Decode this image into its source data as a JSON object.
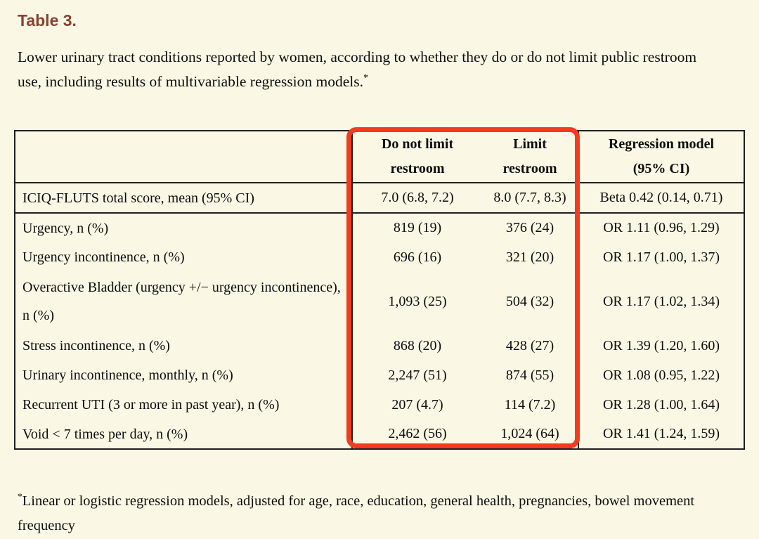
{
  "title": "Table 3.",
  "caption": {
    "text": "Lower urinary tract conditions reported by women, according to whether they do or do not limit public restroom use, including results of multivariable regression models.",
    "footnote_marker": "*"
  },
  "table": {
    "header": {
      "label": "",
      "no_limit_line1": "Do not limit",
      "no_limit_line2": "restroom",
      "limit_line1": "Limit",
      "limit_line2": "restroom",
      "regression_line1": "Regression model",
      "regression_line2": "(95% CI)"
    },
    "rows": [
      {
        "label": "ICIQ-FLUTS total score, mean (95% CI)",
        "no_limit": "7.0 (6.8, 7.2)",
        "limit": "8.0 (7.7, 8.3)",
        "regression": "Beta 0.42 (0.14, 0.71)"
      },
      {
        "label": "Urgency, n (%)",
        "no_limit": "819 (19)",
        "limit": "376 (24)",
        "regression": "OR 1.11 (0.96, 1.29)"
      },
      {
        "label": "Urgency incontinence, n (%)",
        "no_limit": "696 (16)",
        "limit": "321 (20)",
        "regression": "OR 1.17 (1.00, 1.37)"
      },
      {
        "label": "Overactive Bladder (urgency +/− urgency incontinence), n (%)",
        "no_limit": "1,093 (25)",
        "limit": "504 (32)",
        "regression": "OR 1.17 (1.02, 1.34)"
      },
      {
        "label": "Stress incontinence, n (%)",
        "no_limit": "868 (20)",
        "limit": "428 (27)",
        "regression": "OR 1.39 (1.20, 1.60)"
      },
      {
        "label": "Urinary incontinence, monthly, n (%)",
        "no_limit": "2,247 (51)",
        "limit": "874 (55)",
        "regression": "OR 1.08 (0.95, 1.22)"
      },
      {
        "label": "Recurrent UTI (3 or more in past year), n (%)",
        "no_limit": "207 (4.7)",
        "limit": "114 (7.2)",
        "regression": "OR 1.28 (1.00, 1.64)"
      },
      {
        "label": "Void < 7 times per day, n (%)",
        "no_limit": "2,462 (56)",
        "limit": "1,024 (64)",
        "regression": "OR 1.41 (1.24, 1.59)"
      }
    ]
  },
  "footnote": {
    "marker": "*",
    "text": "Linear or logistic regression models, adjusted for age, race, education, general health, pregnancies, bowel movement frequency"
  },
  "colors": {
    "background": "#fbf7e5",
    "title": "#8a4130",
    "highlight_box": "#f33b1e",
    "table_border": "#1f1f1f"
  }
}
